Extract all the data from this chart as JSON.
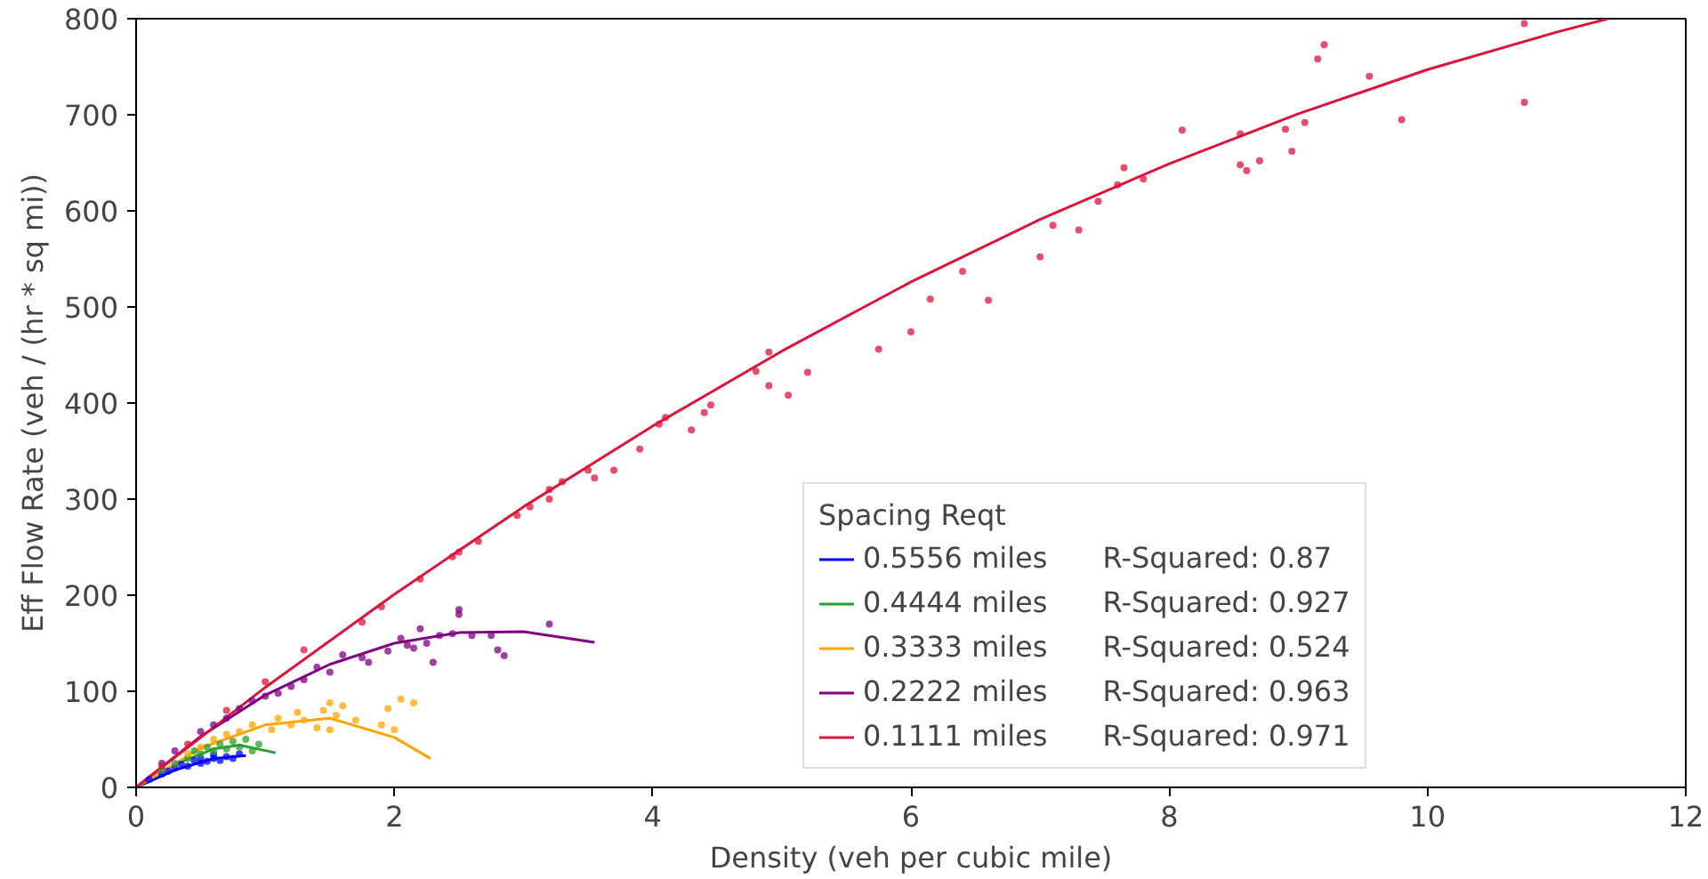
{
  "chart_data": {
    "type": "scatter",
    "xlabel": "Density (veh per cubic mile)",
    "ylabel": "Eff Flow Rate (veh / (hr * sq mi))",
    "legend_title": "Spacing Reqt",
    "xlim": [
      0,
      12
    ],
    "ylim": [
      0,
      800
    ],
    "xticks": [
      0,
      2,
      4,
      6,
      8,
      10,
      12
    ],
    "yticks": [
      0,
      100,
      200,
      300,
      400,
      500,
      600,
      700,
      800
    ],
    "grid": false,
    "legend": "bottom",
    "annotations": [
      "R-Squared: 0.87",
      "R-Squared: 0.927",
      "R-Squared: 0.524",
      "R-Squared: 0.963",
      "R-Squared: 0.971"
    ],
    "series": [
      {
        "name": "0.5556 miles",
        "type": "line",
        "color": "#0000ff",
        "x": [
          0,
          0.3,
          0.6,
          0.85
        ],
        "values": [
          0,
          18,
          30,
          33
        ]
      },
      {
        "name": "0.4444 miles",
        "type": "line",
        "color": "#2ca02c",
        "x": [
          0,
          0.3,
          0.6,
          0.8,
          1.08
        ],
        "values": [
          0,
          24,
          40,
          44,
          36
        ]
      },
      {
        "name": "0.3333 miles",
        "type": "line",
        "color": "#ffa500",
        "x": [
          0,
          0.5,
          1,
          1.5,
          2,
          2.28
        ],
        "values": [
          0,
          41,
          65,
          72,
          52,
          30
        ]
      },
      {
        "name": "0.2222 miles",
        "type": "line",
        "color": "#800080",
        "x": [
          0,
          0.5,
          1,
          1.5,
          2,
          2.5,
          3,
          3.55
        ],
        "values": [
          0,
          53,
          96,
          128,
          150,
          161,
          162,
          151
        ]
      },
      {
        "name": "0.1111 miles",
        "type": "line",
        "color": "#dc143c",
        "x": [
          0,
          1,
          2,
          3,
          4,
          5,
          6,
          7,
          8,
          9,
          10,
          11,
          11.4
        ],
        "values": [
          0,
          104,
          201,
          292,
          376,
          454,
          526,
          591,
          649,
          701,
          747,
          786,
          800
        ]
      },
      {
        "marker": "circle",
        "color": "#0000ff",
        "x": [
          0.8,
          0.75,
          0.7,
          0.65,
          0.6,
          0.55,
          0.5,
          0.45,
          0.4,
          0.35,
          0.3,
          0.25,
          0.2,
          0.1,
          0.5,
          0.6
        ],
        "values": [
          35,
          30,
          32,
          28,
          30,
          27,
          25,
          28,
          22,
          24,
          20,
          17,
          14,
          8,
          30,
          34
        ]
      },
      {
        "marker": "circle",
        "color": "#2ca02c",
        "x": [
          0.95,
          0.85,
          0.8,
          0.75,
          0.7,
          0.65,
          0.6,
          0.55,
          0.5,
          0.45,
          0.4,
          0.3,
          0.2,
          0.9
        ],
        "values": [
          45,
          50,
          42,
          48,
          40,
          45,
          38,
          42,
          35,
          38,
          30,
          25,
          18,
          38
        ]
      },
      {
        "marker": "circle",
        "color": "#ffa500",
        "x": [
          2.15,
          2.05,
          1.95,
          1.9,
          2.0,
          1.5,
          1.45,
          1.55,
          1.6,
          1.4,
          1.3,
          1.25,
          1.1,
          1.05,
          0.9,
          0.8,
          0.7,
          0.6,
          0.5,
          0.4,
          1.2,
          1.5,
          1.7
        ],
        "values": [
          88,
          92,
          82,
          65,
          60,
          88,
          80,
          75,
          85,
          62,
          70,
          78,
          72,
          60,
          65,
          58,
          55,
          50,
          42,
          35,
          65,
          60,
          70
        ]
      },
      {
        "marker": "circle",
        "color": "#800080",
        "x": [
          3.2,
          2.85,
          2.8,
          2.75,
          2.6,
          2.5,
          2.5,
          2.45,
          2.3,
          2.25,
          2.2,
          2.15,
          2.1,
          2.05,
          1.95,
          1.8,
          1.75,
          1.5,
          1.4,
          1.3,
          1.2,
          1.1,
          1.0,
          0.9,
          0.8,
          0.7,
          0.6,
          0.5,
          0.4,
          0.3,
          0.2,
          1.6,
          2.35
        ],
        "values": [
          170,
          137,
          143,
          158,
          158,
          180,
          185,
          160,
          130,
          150,
          165,
          145,
          148,
          155,
          142,
          130,
          135,
          120,
          125,
          112,
          105,
          98,
          95,
          90,
          82,
          72,
          65,
          58,
          null,
          38,
          25,
          138,
          158
        ]
      },
      {
        "marker": "circle",
        "color": "#dc143c",
        "x": [
          10.75,
          10.75,
          9.8,
          9.55,
          9.2,
          9.15,
          9.05,
          8.95,
          8.9,
          8.7,
          8.6,
          8.55,
          8.55,
          8.1,
          7.8,
          7.65,
          7.6,
          7.45,
          7.3,
          7.1,
          7.0,
          6.6,
          6.4,
          6.15,
          6.0,
          5.75,
          5.2,
          5.05,
          4.9,
          4.9,
          4.8,
          4.45,
          4.4,
          4.3,
          4.1,
          4.05,
          3.9,
          3.7,
          3.55,
          3.5,
          3.3,
          3.2,
          3.2,
          3.05,
          2.95,
          2.65,
          2.5,
          2.45,
          2.2,
          1.9,
          1.75,
          1.3,
          1.0,
          0.7,
          0.4,
          0.2
        ],
        "values": [
          795,
          713,
          695,
          740,
          773,
          758,
          692,
          662,
          685,
          652,
          642,
          648,
          680,
          684,
          633,
          645,
          627,
          610,
          580,
          585,
          552,
          507,
          537,
          508,
          474,
          456,
          432,
          408,
          418,
          453,
          433,
          398,
          390,
          372,
          385,
          378,
          352,
          330,
          322,
          330,
          318,
          300,
          310,
          292,
          283,
          256,
          245,
          240,
          217,
          188,
          172,
          143,
          110,
          80,
          45,
          22
        ]
      }
    ]
  }
}
